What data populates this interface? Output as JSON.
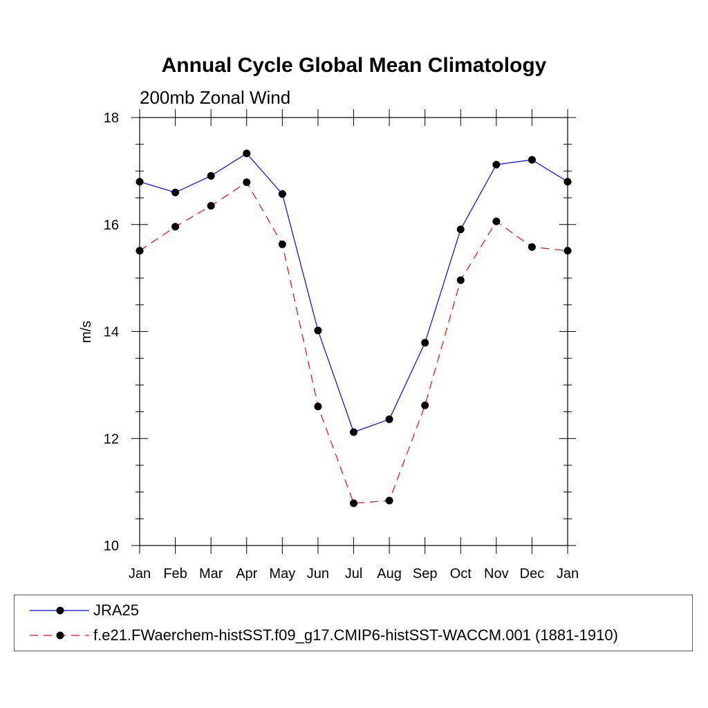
{
  "chart_data": {
    "type": "line",
    "title": "Annual Cycle Global Mean Climatology",
    "subtitle": "200mb Zonal Wind",
    "xlabel": "",
    "ylabel": "m/s",
    "categories": [
      "Jan",
      "Feb",
      "Mar",
      "Apr",
      "May",
      "Jun",
      "Jul",
      "Aug",
      "Sep",
      "Oct",
      "Nov",
      "Dec",
      "Jan"
    ],
    "ylim": [
      10,
      18
    ],
    "yticks": [
      10,
      12,
      14,
      16,
      18
    ],
    "ytick_labels": [
      "10",
      "12",
      "14",
      "16",
      "18"
    ],
    "grid": false,
    "legend_position": "bottom",
    "series": [
      {
        "name": "JRA25",
        "color": "#0000ff",
        "line_style": "solid",
        "marker": "circle",
        "values": [
          16.8,
          16.6,
          16.91,
          17.33,
          16.57,
          14.02,
          12.12,
          12.36,
          13.79,
          15.91,
          17.12,
          17.21,
          16.8
        ]
      },
      {
        "name": "f.e21.FWaerchem-histSST.f09_g17.CMIP6-histSST-WACCM.001 (1881-1910)",
        "color": "#ff0000",
        "line_style": "dashed",
        "marker": "circle",
        "values": [
          15.51,
          15.96,
          16.35,
          16.79,
          15.63,
          12.6,
          10.79,
          10.84,
          12.62,
          14.96,
          16.06,
          15.58,
          15.51
        ]
      }
    ]
  }
}
